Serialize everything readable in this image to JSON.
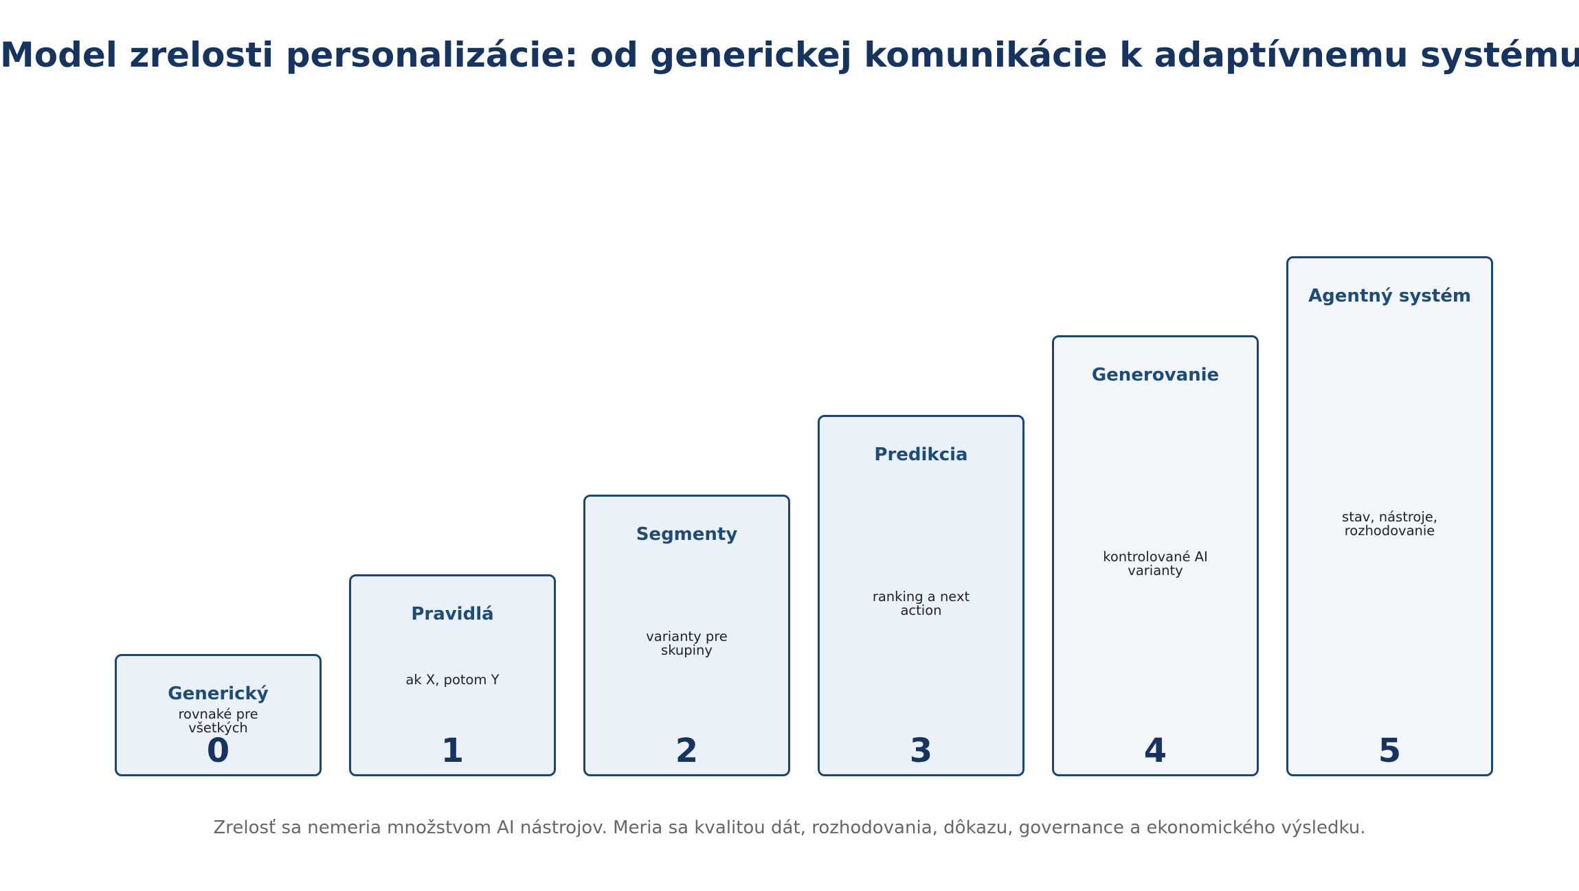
{
  "title": "Model zrelosti personalizácie: od generickej komunikácie k adaptívnemu systému",
  "levels": [
    {
      "number": "0",
      "name": "Generický",
      "description_lines": [
        "rovnaké pre",
        "všetkých"
      ]
    },
    {
      "number": "1",
      "name": "Pravidlá",
      "description_lines": [
        "ak X, potom Y"
      ]
    },
    {
      "number": "2",
      "name": "Segmenty",
      "description_lines": [
        "varianty pre",
        "skupiny"
      ]
    },
    {
      "number": "3",
      "name": "Predikcia",
      "description_lines": [
        "ranking a next",
        "action"
      ]
    },
    {
      "number": "4",
      "name": "Generovanie",
      "description_lines": [
        "kontrolované AI",
        "varianty"
      ]
    },
    {
      "number": "5",
      "name": "Agentný systém",
      "description_lines": [
        "stav, nástroje,",
        "rozhodovanie"
      ]
    }
  ],
  "footer": "Zrelosť sa nemeria množstvom AI nástrojov. Meria sa kvalitou dát, rozhodovania, dôkazu, governance a ekonomického výsledku.",
  "colors": {
    "title": "#17345e",
    "box_border": "#1c4670",
    "box_fill_levels_0_3": "#eaf1f8",
    "box_fill_levels_4_5": "#f2f6fa",
    "level_name": "#1f4b76",
    "footer_text": "#666666"
  }
}
